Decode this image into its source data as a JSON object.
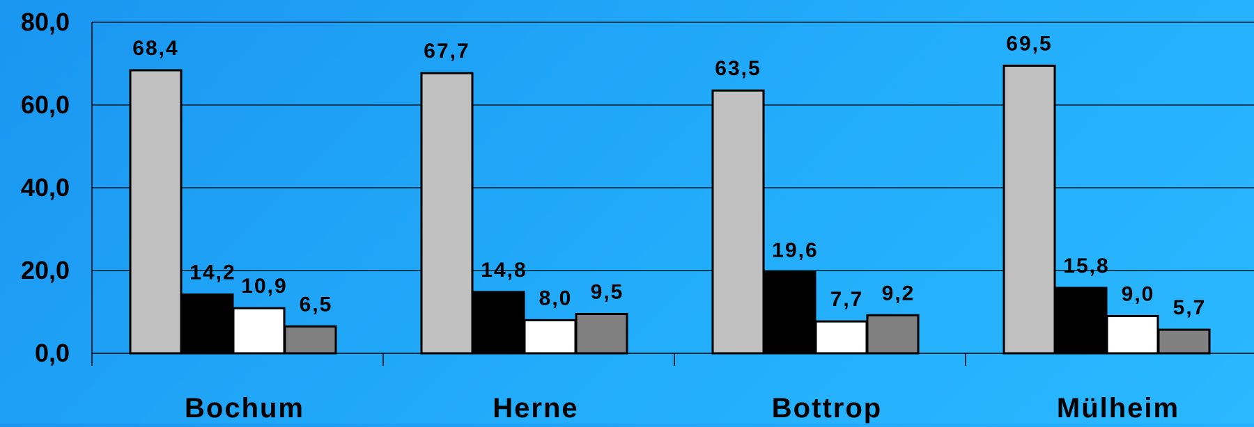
{
  "chart_data": {
    "type": "bar",
    "categories": [
      "Bochum",
      "Herne",
      "Bottrop",
      "Mülheim"
    ],
    "series": [
      {
        "color": "#c0c0c0",
        "values": [
          68.4,
          67.7,
          63.5,
          69.5
        ],
        "labels": [
          "68,4",
          "67,7",
          "63,5",
          "69,5"
        ]
      },
      {
        "color": "#000000",
        "values": [
          14.2,
          14.8,
          19.6,
          15.8
        ],
        "labels": [
          "14,2",
          "14,8",
          "19,6",
          "15,8"
        ]
      },
      {
        "color": "#ffffff",
        "values": [
          10.9,
          8.0,
          7.7,
          9.0
        ],
        "labels": [
          "10,9",
          "8,0",
          "7,7",
          "9,0"
        ]
      },
      {
        "color": "#808080",
        "values": [
          6.5,
          9.5,
          9.2,
          5.7
        ],
        "labels": [
          "6,5",
          "9,5",
          "9,2",
          "5,7"
        ]
      }
    ],
    "yticks": [
      0,
      20,
      40,
      60,
      80
    ],
    "ytick_labels": [
      "0,0",
      "20,0",
      "40,0",
      "60,0",
      "80,0"
    ],
    "ylim": [
      0,
      80
    ],
    "grid": true,
    "legend": "none",
    "title": "",
    "xlabel": "",
    "ylabel": ""
  }
}
